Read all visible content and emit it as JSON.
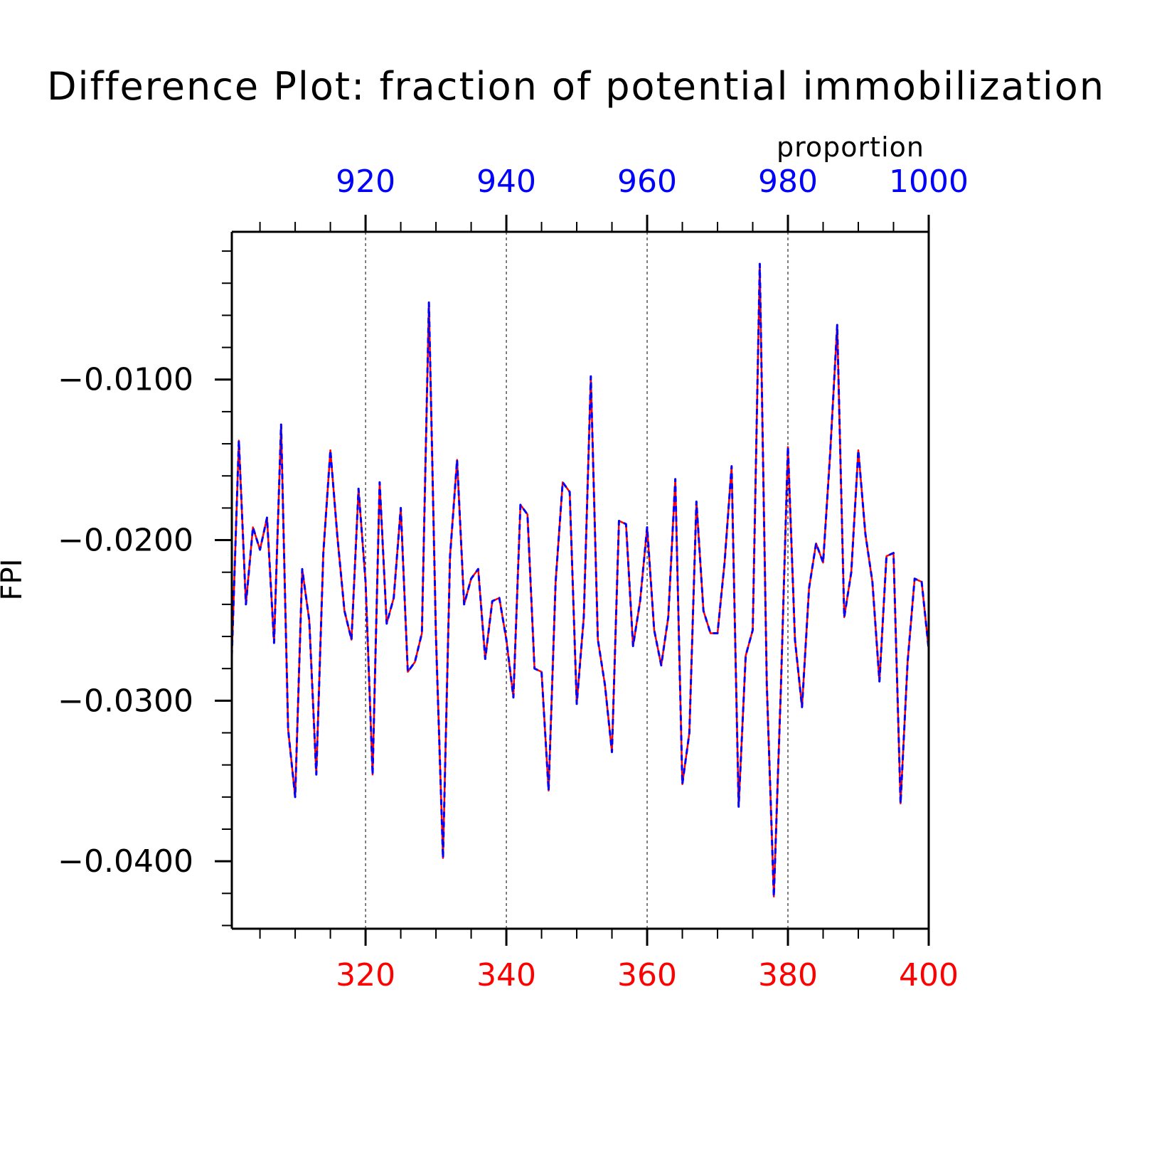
{
  "chart_data": {
    "type": "line",
    "title": "Difference Plot: fraction of potential immobilization",
    "subtitle": "proportion",
    "ylabel": "FPI",
    "xlabel": "",
    "bottom_axis": {
      "range": [
        301,
        400
      ],
      "ticks": [
        320,
        340,
        360,
        380,
        400
      ],
      "tick_labels": [
        "320",
        "340",
        "360",
        "380",
        "400"
      ],
      "color": "#ff0000"
    },
    "top_axis": {
      "range": [
        901,
        1000
      ],
      "ticks": [
        920,
        940,
        960,
        980,
        1000
      ],
      "tick_labels": [
        "920",
        "940",
        "960",
        "980",
        "1000"
      ],
      "color": "#0000ff"
    },
    "y_axis": {
      "range": [
        -0.0442,
        -0.0008
      ],
      "ticks": [
        -0.04,
        -0.03,
        -0.02,
        -0.01
      ],
      "tick_labels": [
        "−0.0400",
        "−0.0300",
        "−0.0200",
        "−0.0100"
      ]
    },
    "grid": "vertical dashed at major ticks",
    "series": [
      {
        "axis": "bottom",
        "color": "#ff0000",
        "style": "solid",
        "x_start": 301,
        "values": [
          -0.0272,
          -0.0138,
          -0.024,
          -0.0192,
          -0.0206,
          -0.0186,
          -0.0264,
          -0.0128,
          -0.0318,
          -0.036,
          -0.0218,
          -0.025,
          -0.0346,
          -0.0208,
          -0.0144,
          -0.0198,
          -0.0244,
          -0.0262,
          -0.0168,
          -0.0226,
          -0.0346,
          -0.0164,
          -0.0252,
          -0.0236,
          -0.018,
          -0.0282,
          -0.0276,
          -0.0258,
          -0.0052,
          -0.026,
          -0.0398,
          -0.021,
          -0.015,
          -0.024,
          -0.0224,
          -0.0218,
          -0.0274,
          -0.0238,
          -0.0236,
          -0.0262,
          -0.0298,
          -0.0178,
          -0.0184,
          -0.028,
          -0.0282,
          -0.0356,
          -0.0226,
          -0.0164,
          -0.017,
          -0.0302,
          -0.0248,
          -0.0098,
          -0.0262,
          -0.029,
          -0.0332,
          -0.0188,
          -0.019,
          -0.0266,
          -0.0238,
          -0.0192,
          -0.0256,
          -0.0278,
          -0.0248,
          -0.0162,
          -0.0352,
          -0.032,
          -0.0176,
          -0.0244,
          -0.0258,
          -0.0258,
          -0.0214,
          -0.0154,
          -0.0366,
          -0.0272,
          -0.0256,
          -0.0028,
          -0.029,
          -0.0422,
          -0.0292,
          -0.0142,
          -0.0262,
          -0.0304,
          -0.023,
          -0.0202,
          -0.0214,
          -0.0146,
          -0.0066,
          -0.0248,
          -0.022,
          -0.0144,
          -0.0196,
          -0.0226,
          -0.0288,
          -0.021,
          -0.0208,
          -0.0364,
          -0.0276,
          -0.0224,
          -0.0226,
          -0.0268
        ]
      },
      {
        "axis": "top",
        "color": "#0000ff",
        "style": "dashed",
        "x_start": 901,
        "values": [
          -0.0272,
          -0.0138,
          -0.024,
          -0.0192,
          -0.0206,
          -0.0186,
          -0.0264,
          -0.0128,
          -0.0318,
          -0.036,
          -0.0218,
          -0.025,
          -0.0346,
          -0.0208,
          -0.0144,
          -0.0198,
          -0.0244,
          -0.0262,
          -0.0168,
          -0.0226,
          -0.0346,
          -0.0164,
          -0.0252,
          -0.0236,
          -0.018,
          -0.0282,
          -0.0276,
          -0.0258,
          -0.0052,
          -0.026,
          -0.0398,
          -0.021,
          -0.015,
          -0.024,
          -0.0224,
          -0.0218,
          -0.0274,
          -0.0238,
          -0.0236,
          -0.0262,
          -0.0298,
          -0.0178,
          -0.0184,
          -0.028,
          -0.0282,
          -0.0356,
          -0.0226,
          -0.0164,
          -0.017,
          -0.0302,
          -0.0248,
          -0.0098,
          -0.0262,
          -0.029,
          -0.0332,
          -0.0188,
          -0.019,
          -0.0266,
          -0.0238,
          -0.0192,
          -0.0256,
          -0.0278,
          -0.0248,
          -0.0162,
          -0.0352,
          -0.032,
          -0.0176,
          -0.0244,
          -0.0258,
          -0.0258,
          -0.0214,
          -0.0154,
          -0.0366,
          -0.0272,
          -0.0256,
          -0.0028,
          -0.029,
          -0.0422,
          -0.0292,
          -0.0142,
          -0.0262,
          -0.0304,
          -0.023,
          -0.0202,
          -0.0214,
          -0.0146,
          -0.0066,
          -0.0248,
          -0.022,
          -0.0144,
          -0.0196,
          -0.0226,
          -0.0288,
          -0.021,
          -0.0208,
          -0.0364,
          -0.0276,
          -0.0224,
          -0.0226,
          -0.0268
        ]
      }
    ]
  }
}
